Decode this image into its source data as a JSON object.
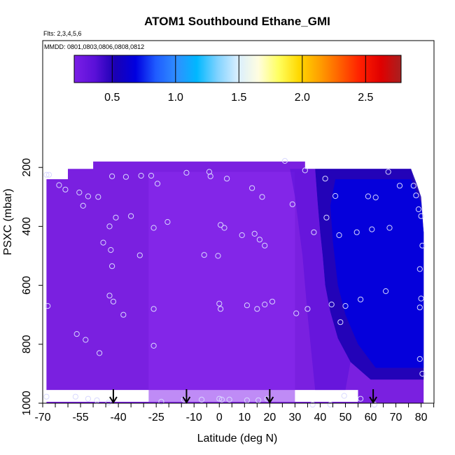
{
  "chart_data": {
    "type": "heatmap",
    "title": "ATOM1 Southbound Ethane_GMI",
    "subtitle_lines": [
      "Flts: 2,3,4,5,6",
      "MMDD: 0801,0803,0806,0808,0812"
    ],
    "xlabel": "Latitude (deg N)",
    "ylabel": "PSXC (mbar)",
    "xlim": [
      -70,
      85
    ],
    "ylim": [
      1000,
      0
    ],
    "x_tick_labels": [
      "-70",
      "-55",
      "-40",
      "-25",
      "-10",
      "0",
      "10",
      "20",
      "30",
      "40",
      "50",
      "60",
      "70",
      "80"
    ],
    "y_tick_labels": [
      "200",
      "400",
      "600",
      "800",
      "1000"
    ],
    "colorbar": {
      "min": 0.2,
      "max": 2.78,
      "tick_labels": [
        "0.5",
        "1.0",
        "1.5",
        "2.0",
        "2.5"
      ],
      "colors": [
        "#7b1fe6",
        "#5a10d8",
        "#1a00b4",
        "#0000e0",
        "#1f5cff",
        "#2f8fff",
        "#00b8ff",
        "#7fd2ff",
        "#d8eeff",
        "#fffde0",
        "#ffff60",
        "#ffd800",
        "#ffa000",
        "#ff6000",
        "#ff1f00",
        "#e00000",
        "#a82020"
      ]
    },
    "field": {
      "background_color": "#7a20e0",
      "features": [
        {
          "lat_range": [
            -30,
            30
          ],
          "p_range": [
            200,
            1000
          ],
          "value": 0.3,
          "label": "tropical lighter band"
        },
        {
          "lat_range": [
            42,
            85
          ],
          "p_range": [
            200,
            600
          ],
          "value": 0.62,
          "label": "northern high values upper"
        },
        {
          "lat_range": [
            44,
            85
          ],
          "p_range": [
            600,
            900
          ],
          "value": 0.6,
          "label": "northern high values lower"
        }
      ]
    },
    "flight_arrows_lat": [
      -42,
      -13,
      20,
      61
    ],
    "observations": [
      [
        -68.5,
        225
      ],
      [
        -67.5,
        225
      ],
      [
        -63.5,
        260
      ],
      [
        -61,
        275
      ],
      [
        -55.5,
        285
      ],
      [
        -52,
        298
      ],
      [
        -54,
        330
      ],
      [
        -48,
        300
      ],
      [
        -42.5,
        230
      ],
      [
        -37,
        232
      ],
      [
        -31,
        228
      ],
      [
        -27,
        228
      ],
      [
        -24.5,
        255
      ],
      [
        -41,
        370
      ],
      [
        -35,
        365
      ],
      [
        -43.5,
        400
      ],
      [
        -26,
        405
      ],
      [
        -20.5,
        385
      ],
      [
        -46,
        455
      ],
      [
        -43,
        480
      ],
      [
        -42.5,
        535
      ],
      [
        -31.5,
        498
      ],
      [
        -13,
        218
      ],
      [
        -4,
        215
      ],
      [
        -3.5,
        230
      ],
      [
        3,
        238
      ],
      [
        13,
        270
      ],
      [
        -6,
        497
      ],
      [
        -0.5,
        500
      ],
      [
        0.5,
        395
      ],
      [
        2,
        405
      ],
      [
        9,
        430
      ],
      [
        14,
        425
      ],
      [
        16,
        445
      ],
      [
        18,
        465
      ],
      [
        17,
        300
      ],
      [
        26,
        178
      ],
      [
        29,
        325
      ],
      [
        34,
        210
      ],
      [
        37.5,
        420
      ],
      [
        42,
        238
      ],
      [
        42.5,
        370
      ],
      [
        46,
        297
      ],
      [
        47.5,
        430
      ],
      [
        54.5,
        420
      ],
      [
        60.5,
        410
      ],
      [
        59,
        298
      ],
      [
        62,
        302
      ],
      [
        71.5,
        262
      ],
      [
        67,
        215
      ],
      [
        67.5,
        405
      ],
      [
        77,
        262
      ],
      [
        78,
        295
      ],
      [
        79,
        342
      ],
      [
        80.5,
        465
      ],
      [
        80,
        365
      ],
      [
        79.5,
        545
      ],
      [
        80,
        645
      ],
      [
        79.5,
        675
      ],
      [
        66,
        620
      ],
      [
        56,
        648
      ],
      [
        44.5,
        665
      ],
      [
        48,
        725
      ],
      [
        50,
        670
      ],
      [
        30.5,
        695
      ],
      [
        35,
        680
      ],
      [
        -68,
        670
      ],
      [
        -43.5,
        635
      ],
      [
        -42,
        655
      ],
      [
        -38,
        700
      ],
      [
        -26,
        680
      ],
      [
        -26,
        805
      ],
      [
        -56.5,
        765
      ],
      [
        -53,
        785
      ],
      [
        -47.5,
        830
      ],
      [
        0,
        662
      ],
      [
        0.5,
        680
      ],
      [
        11,
        668
      ],
      [
        15,
        680
      ],
      [
        18,
        665
      ],
      [
        21,
        655
      ],
      [
        79.5,
        850
      ],
      [
        80.5,
        900
      ],
      [
        -68.5,
        978
      ],
      [
        -57,
        978
      ],
      [
        -52,
        985
      ],
      [
        -48.5,
        990
      ],
      [
        -44,
        998
      ],
      [
        -23,
        995
      ],
      [
        -14,
        988
      ],
      [
        -7,
        988
      ],
      [
        0,
        985
      ],
      [
        1,
        988
      ],
      [
        4,
        988
      ],
      [
        11,
        990
      ],
      [
        15.5,
        990
      ],
      [
        19,
        985
      ],
      [
        37,
        1005
      ],
      [
        44,
        1005
      ],
      [
        49.5,
        975
      ],
      [
        56,
        985
      ],
      [
        61.5,
        1005
      ]
    ]
  }
}
